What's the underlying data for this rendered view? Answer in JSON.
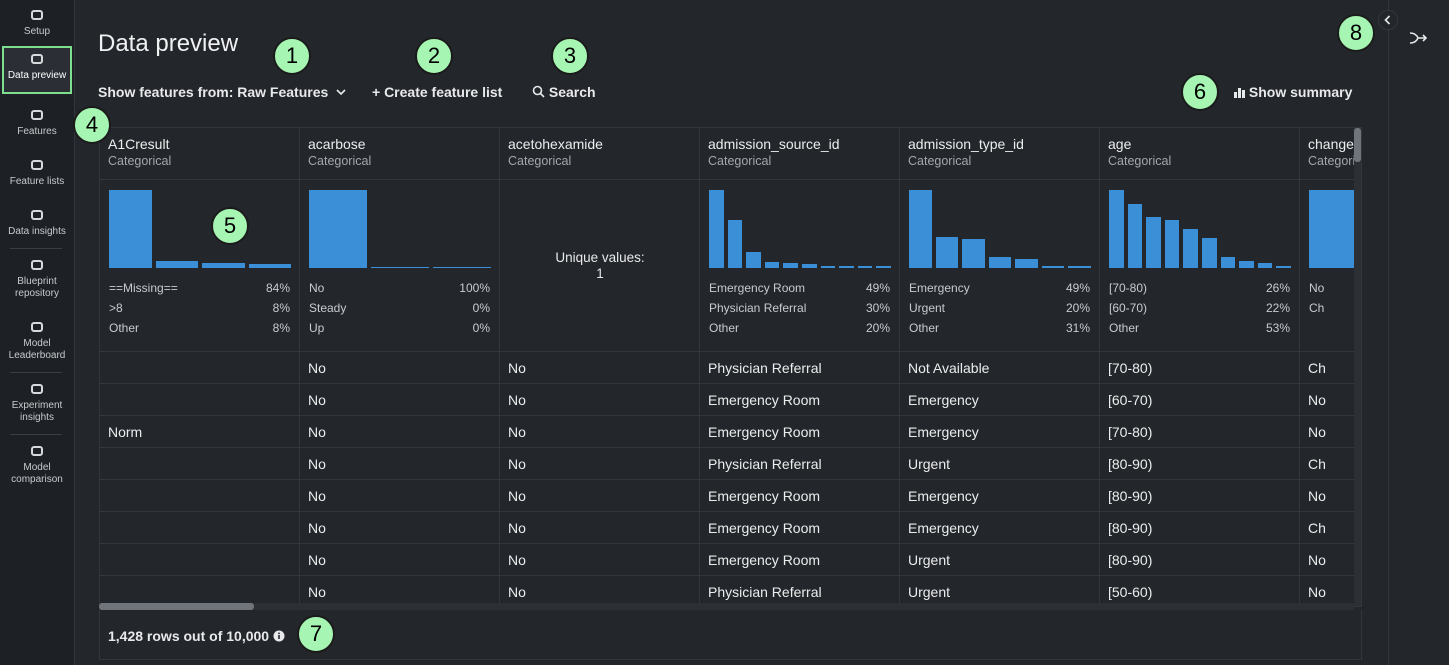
{
  "sidebar": {
    "active": 1,
    "items": [
      {
        "label": "Setup"
      },
      {
        "label": "Data preview"
      },
      {
        "label": "Features"
      },
      {
        "label": "Feature lists"
      },
      {
        "label": "Data insights"
      },
      {
        "label": "Blueprint repository"
      },
      {
        "label": "Model Leaderboard"
      },
      {
        "label": "Experiment insights"
      },
      {
        "label": "Model comparison"
      }
    ]
  },
  "header": {
    "title": "Data preview",
    "feature_source": "Show features from: Raw Features",
    "create_button": "+ Create feature list",
    "search_button": "Search",
    "summary_button": "Show summary"
  },
  "table": {
    "columns": [
      {
        "name": "A1Cresult",
        "type": "Categorical",
        "histogram": [
          100,
          9,
          6,
          5
        ],
        "stats": [
          {
            "label": "==Missing==",
            "value": "84%"
          },
          {
            "label": ">8",
            "value": "8%"
          },
          {
            "label": "Other",
            "value": "8%"
          }
        ]
      },
      {
        "name": "acarbose",
        "type": "Categorical",
        "histogram": [
          100,
          1,
          1
        ],
        "stats": [
          {
            "label": "No",
            "value": "100%"
          },
          {
            "label": "Steady",
            "value": "0%"
          },
          {
            "label": "Up",
            "value": "0%"
          }
        ]
      },
      {
        "name": "acetohexamide",
        "type": "Categorical",
        "unique_label": "Unique values:",
        "unique_count": 1
      },
      {
        "name": "admission_source_id",
        "type": "Categorical",
        "histogram": [
          100,
          62,
          20,
          8,
          7,
          5,
          3,
          2,
          2,
          2
        ],
        "stats": [
          {
            "label": "Emergency Room",
            "value": "49%"
          },
          {
            "label": "Physician Referral",
            "value": "30%"
          },
          {
            "label": "Other",
            "value": "20%"
          }
        ]
      },
      {
        "name": "admission_type_id",
        "type": "Categorical",
        "histogram": [
          100,
          40,
          37,
          14,
          11,
          2,
          2
        ],
        "stats": [
          {
            "label": "Emergency",
            "value": "49%"
          },
          {
            "label": "Urgent",
            "value": "20%"
          },
          {
            "label": "Other",
            "value": "31%"
          }
        ]
      },
      {
        "name": "age",
        "type": "Categorical",
        "histogram": [
          100,
          82,
          66,
          61,
          50,
          38,
          14,
          9,
          6,
          3
        ],
        "stats": [
          {
            "label": "[70-80)",
            "value": "26%"
          },
          {
            "label": "[60-70)",
            "value": "22%"
          },
          {
            "label": "Other",
            "value": "53%"
          }
        ]
      },
      {
        "name": "change",
        "type": "Categorical",
        "histogram": [
          100
        ],
        "stats": [
          {
            "label": "No"
          },
          {
            "label": "Ch"
          }
        ]
      }
    ],
    "rows": [
      [
        null,
        "No",
        "No",
        "Physician Referral",
        "Not Available",
        "[70-80)",
        "Ch"
      ],
      [
        null,
        "No",
        "No",
        "Emergency Room",
        "Emergency",
        "[60-70)",
        "No"
      ],
      [
        "Norm",
        "No",
        "No",
        "Emergency Room",
        "Emergency",
        "[70-80)",
        "No"
      ],
      [
        null,
        "No",
        "No",
        "Physician Referral",
        "Urgent",
        "[80-90)",
        "Ch"
      ],
      [
        null,
        "No",
        "No",
        "Emergency Room",
        "Emergency",
        "[80-90)",
        "No"
      ],
      [
        null,
        "No",
        "No",
        "Emergency Room",
        "Emergency",
        "[80-90)",
        "Ch"
      ],
      [
        null,
        "No",
        "No",
        "Emergency Room",
        "Urgent",
        "[80-90)",
        "No"
      ],
      [
        null,
        "No",
        "No",
        "Physician Referral",
        "Urgent",
        "[50-60)",
        "No"
      ]
    ]
  },
  "footer": {
    "row_count": "1,428 rows out of 10,000"
  },
  "callouts": [
    "1",
    "2",
    "3",
    "4",
    "5",
    "6",
    "7",
    "8"
  ]
}
